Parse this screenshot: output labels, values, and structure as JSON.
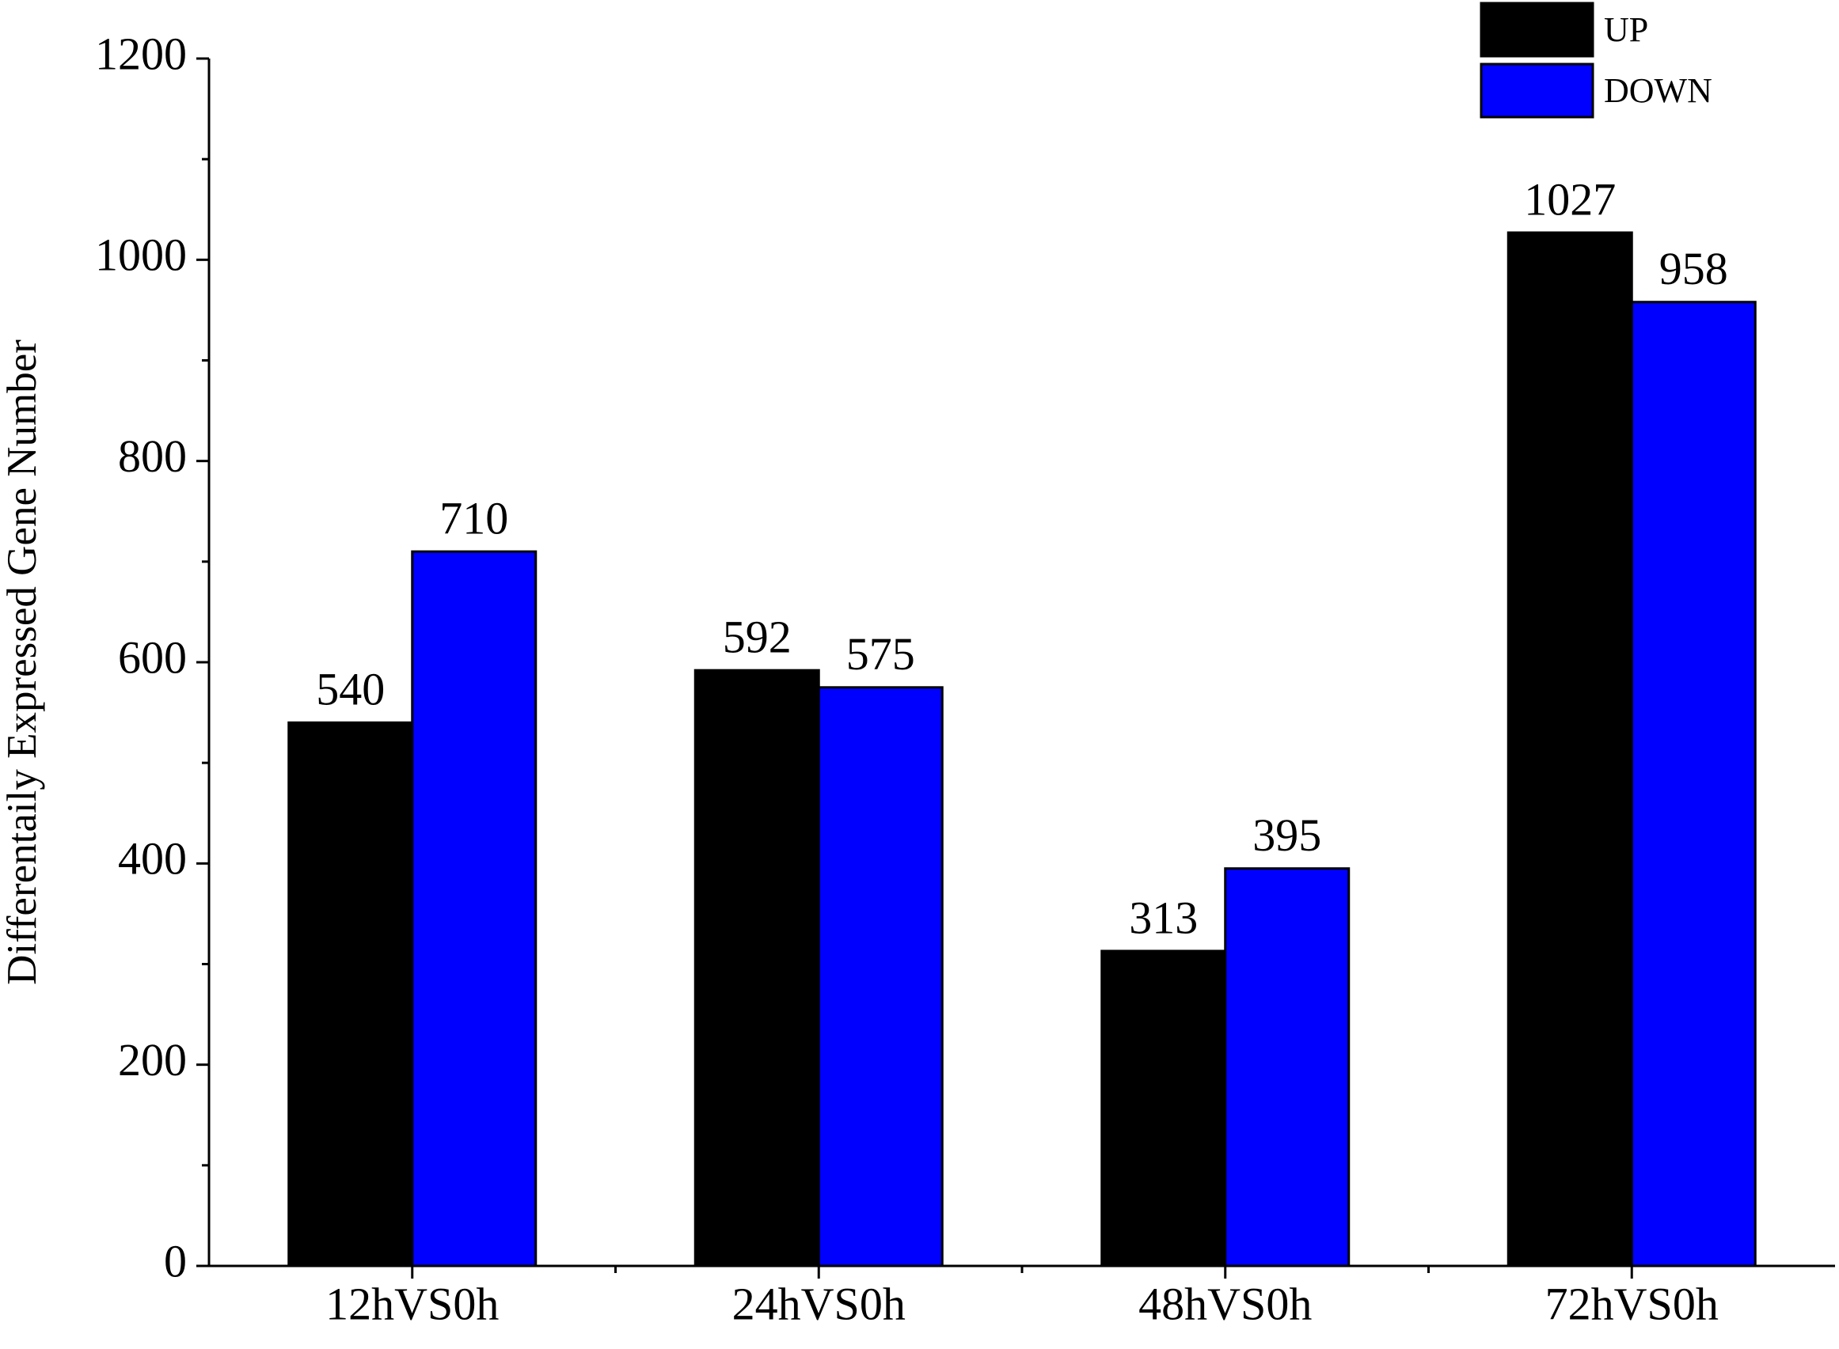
{
  "chart_data": {
    "type": "bar",
    "y_label": "Differentaily Expressed Gene Number",
    "categories": [
      "12hVS0h",
      "24hVS0h",
      "48hVS0h",
      "72hVS0h"
    ],
    "series": [
      {
        "name": "UP",
        "color": "#000000",
        "values": [
          540,
          592,
          313,
          1027
        ]
      },
      {
        "name": "DOWN",
        "color": "#0000ff",
        "values": [
          710,
          575,
          395,
          958
        ]
      }
    ],
    "ylim": [
      0,
      1200
    ],
    "yticks": [
      0,
      200,
      400,
      600,
      800,
      1000,
      1200
    ],
    "legend": "top-right",
    "grid": false
  }
}
